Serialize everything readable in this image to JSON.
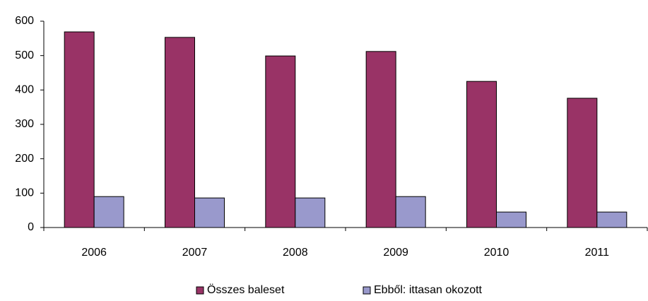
{
  "chart_data": {
    "type": "bar",
    "categories": [
      "2006",
      "2007",
      "2008",
      "2009",
      "2010",
      "2011"
    ],
    "series": [
      {
        "name": "Összes baleset",
        "color": "#993366",
        "values": [
          569,
          553,
          499,
          512,
          425,
          376
        ]
      },
      {
        "name": "Ebből: ittasan okozott",
        "color": "#9999cc",
        "values": [
          90,
          86,
          86,
          90,
          45,
          45
        ]
      }
    ],
    "ylim": [
      0,
      600
    ],
    "yticks": [
      0,
      100,
      200,
      300,
      400,
      500,
      600
    ],
    "grid": false,
    "legend": "bottom"
  }
}
